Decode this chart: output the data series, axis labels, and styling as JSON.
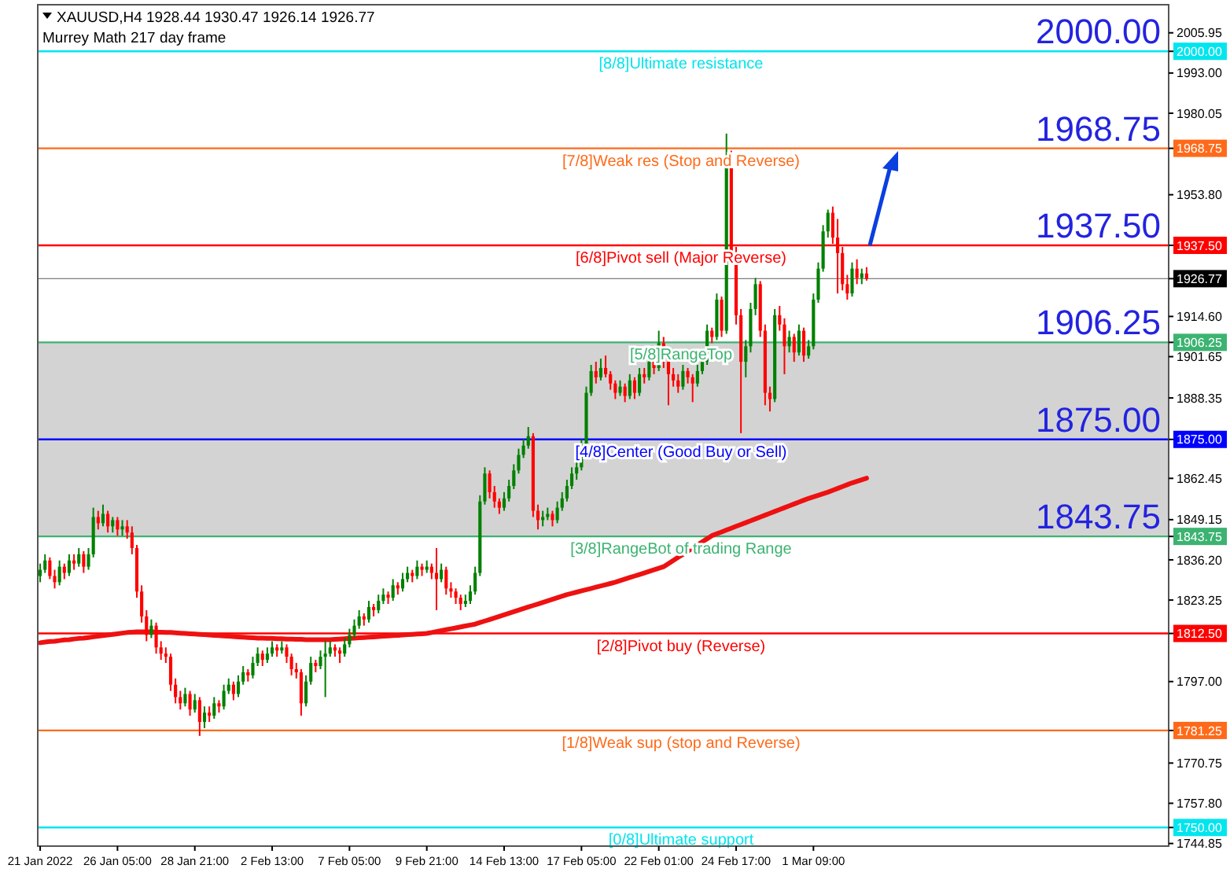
{
  "chart_data": {
    "type": "candlestick",
    "title": "XAUUSD,H4  1928.44 1930.47 1926.14 1926.77",
    "subtitle": "Murrey Math 217 day frame",
    "categories": [
      "21 Jan 2022",
      null,
      null,
      null,
      null,
      null,
      null,
      null,
      null,
      null,
      null,
      null,
      null,
      null,
      null,
      null,
      "26 Jan 05:00",
      null,
      null,
      null,
      null,
      null,
      null,
      null,
      null,
      null,
      null,
      null,
      null,
      null,
      null,
      null,
      "28 Jan 21:00",
      null,
      null,
      null,
      null,
      null,
      null,
      null,
      null,
      null,
      null,
      null,
      null,
      null,
      null,
      null,
      "2 Feb 13:00",
      null,
      null,
      null,
      null,
      null,
      null,
      null,
      null,
      null,
      null,
      null,
      null,
      null,
      null,
      null,
      "7 Feb 05:00",
      null,
      null,
      null,
      null,
      null,
      null,
      null,
      null,
      null,
      null,
      null,
      null,
      null,
      null,
      null,
      "9 Feb 21:00",
      null,
      null,
      null,
      null,
      null,
      null,
      null,
      null,
      null,
      null,
      null,
      null,
      null,
      null,
      null,
      "14 Feb 13:00",
      null,
      null,
      null,
      null,
      null,
      null,
      null,
      null,
      null,
      null,
      null,
      null,
      null,
      null,
      null,
      "17 Feb 05:00",
      null,
      null,
      null,
      null,
      null,
      null,
      null,
      null,
      null,
      null,
      null,
      null,
      null,
      null,
      null,
      "22 Feb 01:00",
      null,
      null,
      null,
      null,
      null,
      null,
      null,
      null,
      null,
      null,
      null,
      null,
      null,
      null,
      null,
      "24 Feb 17:00",
      null,
      null,
      null,
      null,
      null,
      null,
      null,
      null,
      null,
      null,
      null,
      null,
      null,
      null,
      null,
      "1 Mar 09:00",
      null,
      null,
      null,
      null,
      null,
      null,
      null,
      null,
      null,
      null,
      null,
      null,
      null,
      null,
      null,
      null,
      null,
      null,
      null,
      null,
      null,
      null,
      null,
      null,
      null,
      null,
      null,
      null,
      null,
      null,
      null,
      null,
      null,
      null,
      null,
      null,
      null,
      null,
      null,
      null,
      null,
      null,
      null,
      null,
      null,
      null,
      null,
      null,
      null,
      null,
      null,
      null,
      null,
      null,
      null,
      null,
      null,
      null,
      null,
      null,
      null,
      null,
      null,
      null,
      null,
      null,
      null,
      null,
      null,
      null,
      null,
      null,
      null
    ],
    "ohlc": [
      [
        1831,
        1835,
        1829,
        1833
      ],
      [
        1833,
        1838,
        1832,
        1836
      ],
      [
        1836,
        1837,
        1830,
        1831
      ],
      [
        1831,
        1833,
        1827,
        1829
      ],
      [
        1829,
        1836,
        1828,
        1834
      ],
      [
        1834,
        1835,
        1830,
        1832
      ],
      [
        1832,
        1838,
        1831,
        1836
      ],
      [
        1836,
        1838,
        1833,
        1835
      ],
      [
        1835,
        1840,
        1834,
        1838
      ],
      [
        1838,
        1839,
        1832,
        1834
      ],
      [
        1834,
        1840,
        1833,
        1838
      ],
      [
        1838,
        1853,
        1837,
        1850
      ],
      [
        1850,
        1852,
        1846,
        1848
      ],
      [
        1848,
        1854,
        1847,
        1851
      ],
      [
        1851,
        1852,
        1845,
        1847
      ],
      [
        1847,
        1850,
        1845,
        1849
      ],
      [
        1849,
        1850,
        1844,
        1846
      ],
      [
        1846,
        1849,
        1844,
        1847
      ],
      [
        1847,
        1849,
        1843,
        1845
      ],
      [
        1845,
        1847,
        1838,
        1840
      ],
      [
        1840,
        1841,
        1824,
        1826
      ],
      [
        1826,
        1828,
        1816,
        1818
      ],
      [
        1818,
        1820,
        1810,
        1812
      ],
      [
        1812,
        1817,
        1811,
        1815
      ],
      [
        1815,
        1816,
        1806,
        1808
      ],
      [
        1808,
        1810,
        1804,
        1806
      ],
      [
        1806,
        1808,
        1803,
        1805
      ],
      [
        1805,
        1806,
        1794,
        1796
      ],
      [
        1796,
        1798,
        1790,
        1792
      ],
      [
        1792,
        1794,
        1788,
        1790
      ],
      [
        1790,
        1795,
        1789,
        1793
      ],
      [
        1793,
        1794,
        1786,
        1788
      ],
      [
        1788,
        1793,
        1787,
        1791
      ],
      [
        1791,
        1792,
        1779.5,
        1784
      ],
      [
        1784,
        1789,
        1782,
        1787
      ],
      [
        1787,
        1789,
        1784,
        1786
      ],
      [
        1786,
        1792,
        1785,
        1790
      ],
      [
        1790,
        1791,
        1787,
        1789
      ],
      [
        1789,
        1796,
        1788,
        1794
      ],
      [
        1794,
        1798,
        1793,
        1796
      ],
      [
        1796,
        1797,
        1791,
        1793
      ],
      [
        1793,
        1799,
        1792,
        1797
      ],
      [
        1797,
        1802,
        1796,
        1800
      ],
      [
        1800,
        1801,
        1797,
        1799
      ],
      [
        1799,
        1805,
        1798,
        1803
      ],
      [
        1803,
        1808,
        1802,
        1806
      ],
      [
        1806,
        1807,
        1802,
        1804
      ],
      [
        1804,
        1808,
        1803,
        1806
      ],
      [
        1806,
        1810,
        1805,
        1808
      ],
      [
        1808,
        1809,
        1805,
        1807
      ],
      [
        1807,
        1810,
        1806,
        1808
      ],
      [
        1808,
        1809,
        1803,
        1805
      ],
      [
        1805,
        1806,
        1799,
        1801
      ],
      [
        1801,
        1803,
        1798,
        1800
      ],
      [
        1800,
        1801,
        1786,
        1790
      ],
      [
        1790,
        1799,
        1789,
        1797
      ],
      [
        1797,
        1805,
        1796,
        1803
      ],
      [
        1803,
        1804,
        1800,
        1802
      ],
      [
        1802,
        1807,
        1801,
        1805
      ],
      [
        1805,
        1810,
        1792,
        1806
      ],
      [
        1806,
        1810,
        1805,
        1808
      ],
      [
        1808,
        1809,
        1805,
        1807
      ],
      [
        1807,
        1808,
        1803,
        1806
      ],
      [
        1806,
        1811,
        1805,
        1809
      ],
      [
        1809,
        1814,
        1808,
        1812
      ],
      [
        1812,
        1817,
        1811,
        1815
      ],
      [
        1815,
        1820,
        1814,
        1818
      ],
      [
        1818,
        1819,
        1815,
        1817
      ],
      [
        1817,
        1823,
        1816,
        1821
      ],
      [
        1821,
        1822,
        1818,
        1820
      ],
      [
        1820,
        1825,
        1819,
        1823
      ],
      [
        1823,
        1827,
        1822,
        1825
      ],
      [
        1825,
        1826,
        1822,
        1824
      ],
      [
        1824,
        1830,
        1823,
        1828
      ],
      [
        1828,
        1829,
        1825,
        1827
      ],
      [
        1827,
        1832,
        1826,
        1830
      ],
      [
        1830,
        1834,
        1829,
        1832
      ],
      [
        1832,
        1833,
        1829,
        1831
      ],
      [
        1831,
        1836,
        1830,
        1834
      ],
      [
        1834,
        1835,
        1831,
        1833
      ],
      [
        1833,
        1836,
        1832,
        1834
      ],
      [
        1834,
        1835,
        1830,
        1832
      ],
      [
        1832,
        1840,
        1820,
        1830
      ],
      [
        1830,
        1835,
        1829,
        1833
      ],
      [
        1833,
        1834,
        1825,
        1827
      ],
      [
        1827,
        1829,
        1824,
        1826
      ],
      [
        1826,
        1827,
        1822,
        1824
      ],
      [
        1824,
        1825,
        1820,
        1822
      ],
      [
        1822,
        1825,
        1821,
        1823
      ],
      [
        1823,
        1828,
        1822,
        1826
      ],
      [
        1826,
        1834,
        1825,
        1832
      ],
      [
        1832,
        1857,
        1831,
        1855
      ],
      [
        1855,
        1866,
        1854,
        1864
      ],
      [
        1864,
        1865,
        1856,
        1858
      ],
      [
        1858,
        1860,
        1853,
        1855
      ],
      [
        1855,
        1856,
        1851,
        1853
      ],
      [
        1853,
        1858,
        1852,
        1856
      ],
      [
        1856,
        1862,
        1855,
        1860
      ],
      [
        1860,
        1867,
        1859,
        1865
      ],
      [
        1865,
        1872,
        1864,
        1870
      ],
      [
        1870,
        1875,
        1869,
        1873
      ],
      [
        1873,
        1879,
        1872,
        1876
      ],
      [
        1876,
        1877,
        1850,
        1852
      ],
      [
        1852,
        1854,
        1846,
        1849
      ],
      [
        1849,
        1852,
        1847,
        1850
      ],
      [
        1850,
        1853,
        1849,
        1851
      ],
      [
        1851,
        1852,
        1847,
        1849
      ],
      [
        1849,
        1855,
        1848,
        1853
      ],
      [
        1853,
        1858,
        1852,
        1856
      ],
      [
        1856,
        1862,
        1855,
        1860
      ],
      [
        1860,
        1866,
        1859,
        1864
      ],
      [
        1864,
        1868,
        1862,
        1866
      ],
      [
        1866,
        1875,
        1865,
        1873
      ],
      [
        1873,
        1892,
        1872,
        1890
      ],
      [
        1890,
        1899,
        1889,
        1897
      ],
      [
        1897,
        1900,
        1893,
        1895
      ],
      [
        1895,
        1901,
        1894,
        1898
      ],
      [
        1898,
        1902,
        1895,
        1896
      ],
      [
        1896,
        1897,
        1891,
        1893
      ],
      [
        1893,
        1894,
        1888,
        1890
      ],
      [
        1890,
        1894,
        1889,
        1892
      ],
      [
        1892,
        1893,
        1887,
        1889
      ],
      [
        1889,
        1896,
        1888,
        1894
      ],
      [
        1894,
        1895,
        1888,
        1890
      ],
      [
        1890,
        1898,
        1889,
        1896
      ],
      [
        1896,
        1898,
        1893,
        1895
      ],
      [
        1895,
        1903,
        1894,
        1900
      ],
      [
        1900,
        1901,
        1896,
        1898
      ],
      [
        1898,
        1910,
        1897,
        1906
      ],
      [
        1906,
        1908,
        1898,
        1900
      ],
      [
        1900,
        1901,
        1886,
        1896
      ],
      [
        1896,
        1898,
        1892,
        1894
      ],
      [
        1894,
        1896,
        1890,
        1892
      ],
      [
        1892,
        1899,
        1891,
        1897
      ],
      [
        1897,
        1898,
        1893,
        1895
      ],
      [
        1895,
        1896,
        1887,
        1893
      ],
      [
        1893,
        1899,
        1892,
        1897
      ],
      [
        1897,
        1902,
        1896,
        1900
      ],
      [
        1900,
        1912,
        1899,
        1910
      ],
      [
        1910,
        1911,
        1906,
        1908
      ],
      [
        1908,
        1922,
        1907,
        1920
      ],
      [
        1920,
        1921,
        1908,
        1910
      ],
      [
        1910,
        1973.5,
        1909,
        1966
      ],
      [
        1966,
        1968,
        1932,
        1935
      ],
      [
        1935,
        1937,
        1912,
        1915
      ],
      [
        1915,
        1917,
        1877,
        1900
      ],
      [
        1900,
        1907,
        1895,
        1905
      ],
      [
        1905,
        1919,
        1903,
        1917
      ],
      [
        1917,
        1927,
        1915,
        1925
      ],
      [
        1925,
        1926,
        1908,
        1910
      ],
      [
        1910,
        1912,
        1886,
        1890
      ],
      [
        1890,
        1892,
        1884,
        1888
      ],
      [
        1888,
        1917,
        1887,
        1915
      ],
      [
        1915,
        1918,
        1910,
        1912
      ],
      [
        1912,
        1914,
        1896,
        1905
      ],
      [
        1905,
        1910,
        1903,
        1908
      ],
      [
        1908,
        1909,
        1900,
        1903
      ],
      [
        1903,
        1912,
        1902,
        1910
      ],
      [
        1910,
        1911,
        1900,
        1902
      ],
      [
        1902,
        1907,
        1901,
        1905
      ],
      [
        1905,
        1922,
        1904,
        1920
      ],
      [
        1920,
        1932,
        1919,
        1930
      ],
      [
        1930,
        1944,
        1929,
        1942
      ],
      [
        1942,
        1949,
        1940,
        1948
      ],
      [
        1948,
        1950,
        1938,
        1940
      ],
      [
        1940,
        1946,
        1922,
        1935
      ],
      [
        1935,
        1937,
        1923,
        1925
      ],
      [
        1925,
        1928,
        1920,
        1922
      ],
      [
        1922,
        1932,
        1921,
        1930
      ],
      [
        1930,
        1933,
        1925,
        1927
      ],
      [
        1927,
        1930,
        1925,
        1928.44
      ],
      [
        1928.44,
        1930.47,
        1926.14,
        1926.77
      ],
      null,
      null,
      null,
      null,
      null,
      null,
      null,
      null,
      null,
      null,
      null,
      null,
      null,
      null,
      null,
      null,
      null,
      null,
      null,
      null,
      null,
      null,
      null,
      null,
      null,
      null,
      null,
      null,
      null,
      null,
      null,
      null,
      null,
      null,
      null,
      null,
      null,
      null,
      null,
      null,
      null,
      null,
      null,
      null,
      null,
      null,
      null,
      null,
      null,
      null,
      null,
      null,
      null,
      null,
      null,
      null,
      null,
      null,
      null,
      null,
      null,
      null
    ],
    "series": [
      {
        "type": "line",
        "color": "#ee1111",
        "values": [
          1809.5,
          1809.7,
          1809.9,
          1810.0,
          1810.2,
          1810.4,
          1810.5,
          1810.7,
          1810.9,
          1811.0,
          1811.2,
          1811.4,
          1811.6,
          1811.8,
          1812.0,
          1812.2,
          1812.4,
          1812.6,
          1812.8,
          1812.9,
          1813.0,
          1813.0,
          1813.0,
          1813.0,
          1812.9,
          1812.9,
          1812.8,
          1812.8,
          1812.7,
          1812.6,
          1812.5,
          1812.4,
          1812.3,
          1812.2,
          1812.1,
          1812.0,
          1811.9,
          1811.8,
          1811.7,
          1811.6,
          1811.5,
          1811.4,
          1811.3,
          1811.2,
          1811.1,
          1811.0,
          1811.0,
          1810.9,
          1810.9,
          1810.8,
          1810.8,
          1810.7,
          1810.7,
          1810.6,
          1810.6,
          1810.5,
          1810.5,
          1810.5,
          1810.5,
          1810.5,
          1810.5,
          1810.6,
          1810.7,
          1810.8,
          1810.9,
          1811.0,
          1811.1,
          1811.2,
          1811.3,
          1811.4,
          1811.5,
          1811.6,
          1811.7,
          1811.8,
          1811.9,
          1812.0,
          1812.1,
          1812.2,
          1812.3,
          1812.4,
          1812.5,
          1812.8,
          1813.1,
          1813.4,
          1813.7,
          1814.0,
          1814.3,
          1814.6,
          1814.9,
          1815.2,
          1815.5,
          1816.0,
          1816.5,
          1817.0,
          1817.5,
          1818.0,
          1818.5,
          1819.0,
          1819.5,
          1820.0,
          1820.5,
          1821.0,
          1821.5,
          1822.0,
          1822.5,
          1823.0,
          1823.5,
          1824.0,
          1824.5,
          1825.0,
          1825.4,
          1825.8,
          1826.2,
          1826.6,
          1827.0,
          1827.4,
          1827.8,
          1828.2,
          1828.6,
          1829.0,
          1829.5,
          1830.0,
          1830.5,
          1831.0,
          1831.5,
          1832.0,
          1832.5,
          1833.0,
          1833.5,
          1834.0,
          1835.0,
          1836.0,
          1837.0,
          1838.0,
          1839.0,
          1840.0,
          1841.0,
          1842.0,
          1843.0,
          1844.0,
          1844.6,
          1845.2,
          1845.8,
          1846.4,
          1847.0,
          1847.6,
          1848.2,
          1848.8,
          1849.4,
          1850.0,
          1850.6,
          1851.2,
          1851.8,
          1852.4,
          1853.0,
          1853.6,
          1854.2,
          1854.8,
          1855.4,
          1856.0,
          1856.5,
          1857.0,
          1857.5,
          1858.0,
          1858.6,
          1859.2,
          1859.8,
          1860.4,
          1861.0,
          1861.5,
          1862.0,
          1862.5,
          null,
          null,
          null,
          null,
          null,
          null,
          null,
          null,
          null,
          null,
          null,
          null,
          null,
          null,
          null,
          null,
          null,
          null,
          null,
          null,
          null,
          null,
          null,
          null,
          null,
          null,
          null,
          null,
          null,
          null,
          null,
          null,
          null,
          null,
          null,
          null,
          null,
          null,
          null,
          null,
          null,
          null,
          null,
          null,
          null,
          null,
          null,
          null,
          null,
          null,
          null,
          null,
          null,
          null,
          null,
          null,
          null,
          null,
          null,
          null,
          null,
          null
        ]
      }
    ],
    "ylim": [
      1744,
      2015
    ],
    "yticks": [
      2005.95,
      {
        "value": 2000,
        "label": "2000.00"
      },
      {
        "value": 1993,
        "label": "1993.00"
      },
      1980.05,
      1968.75,
      {
        "value": 1953.8,
        "label": "1953.80"
      },
      {
        "value": 1937.5,
        "label": "1937.50"
      },
      1926.77,
      {
        "value": 1914.6,
        "label": "1914.60"
      },
      1906.25,
      1901.65,
      1888.35,
      {
        "value": 1875,
        "label": "1875.00"
      },
      1862.45,
      1849.15,
      1843.75,
      {
        "value": 1836.2,
        "label": "1836.20"
      },
      1823.25,
      {
        "value": 1812.5,
        "label": "1812.50"
      },
      {
        "value": 1797,
        "label": "1797.00"
      },
      1781.25,
      1770.75,
      {
        "value": 1757.8,
        "label": "1757.80"
      },
      {
        "value": 1750,
        "label": "1750.00"
      },
      1744.85
    ],
    "bands": [
      {
        "axis": "y",
        "from": 1843.75,
        "to": 1906.25,
        "color": "#d3d3d3"
      }
    ],
    "ref_lines": [
      {
        "axis": "y",
        "value": 2000,
        "label": "[8/8]Ultimate resistance",
        "color": "#00e5ee"
      },
      {
        "axis": "y",
        "value": 1968.75,
        "label": "[7/8]Weak res (Stop and Reverse)",
        "color": "#ff6a1a"
      },
      {
        "axis": "y",
        "value": 1937.5,
        "label": "[6/8]Pivot sell (Major Reverse)",
        "color": "#ff0000"
      },
      {
        "axis": "y",
        "value": 1906.25,
        "label": "[5/8]RangeTop",
        "color": "#3cb371"
      },
      {
        "axis": "y",
        "value": 1875,
        "label": "[4/8]Center (Good Buy or Sell)",
        "color": "#0000ff"
      },
      {
        "axis": "y",
        "value": 1843.75,
        "label": "[3/8]RangeBot of trading Range",
        "color": "#3cb371"
      },
      {
        "axis": "y",
        "value": 1812.5,
        "label": "[2/8]Pivot buy (Reverse)",
        "color": "#ff0000"
      },
      {
        "axis": "y",
        "value": 1781.25,
        "label": "[1/8]Weak sup (stop and Reverse)",
        "color": "#ff6a1a"
      },
      {
        "axis": "y",
        "value": 1750,
        "label": "[0/8]Ultimate support",
        "color": "#00e5ee"
      },
      {
        "axis": "y",
        "value": 1926.77,
        "label": null,
        "color": "#000000"
      }
    ],
    "annotations": [
      {
        "text": "2000.00",
        "y": 2000
      },
      {
        "text": "1968.75",
        "y": 1968.75
      },
      {
        "text": "1937.50",
        "y": 1937.5
      },
      {
        "text": "1906.25",
        "y": 1906.25
      },
      {
        "text": "1875.00",
        "y": 1875
      },
      {
        "text": "1843.75",
        "y": 1843.75
      }
    ]
  }
}
